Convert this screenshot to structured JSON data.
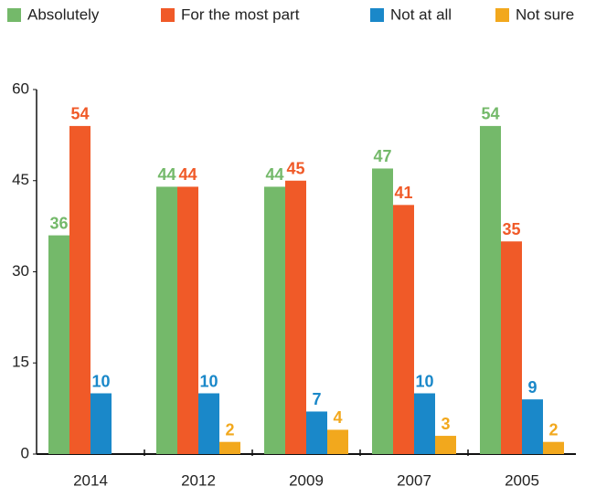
{
  "chart_data": {
    "type": "bar",
    "categories": [
      "2014",
      "2012",
      "2009",
      "2007",
      "2005"
    ],
    "series": [
      {
        "name": "Absolutely",
        "color": "#74b96a",
        "values": [
          36,
          44,
          44,
          47,
          54
        ]
      },
      {
        "name": "For the most part",
        "color": "#f05a28",
        "values": [
          54,
          44,
          45,
          41,
          35
        ]
      },
      {
        "name": "Not at all",
        "color": "#1a88c9",
        "values": [
          10,
          10,
          7,
          10,
          9
        ]
      },
      {
        "name": "Not sure",
        "color": "#f2a81d",
        "values": [
          null,
          2,
          4,
          3,
          2
        ]
      }
    ],
    "ylim": [
      0,
      60
    ],
    "yticks": [
      0,
      15,
      30,
      45,
      60
    ],
    "grid": false,
    "legend": "top"
  }
}
